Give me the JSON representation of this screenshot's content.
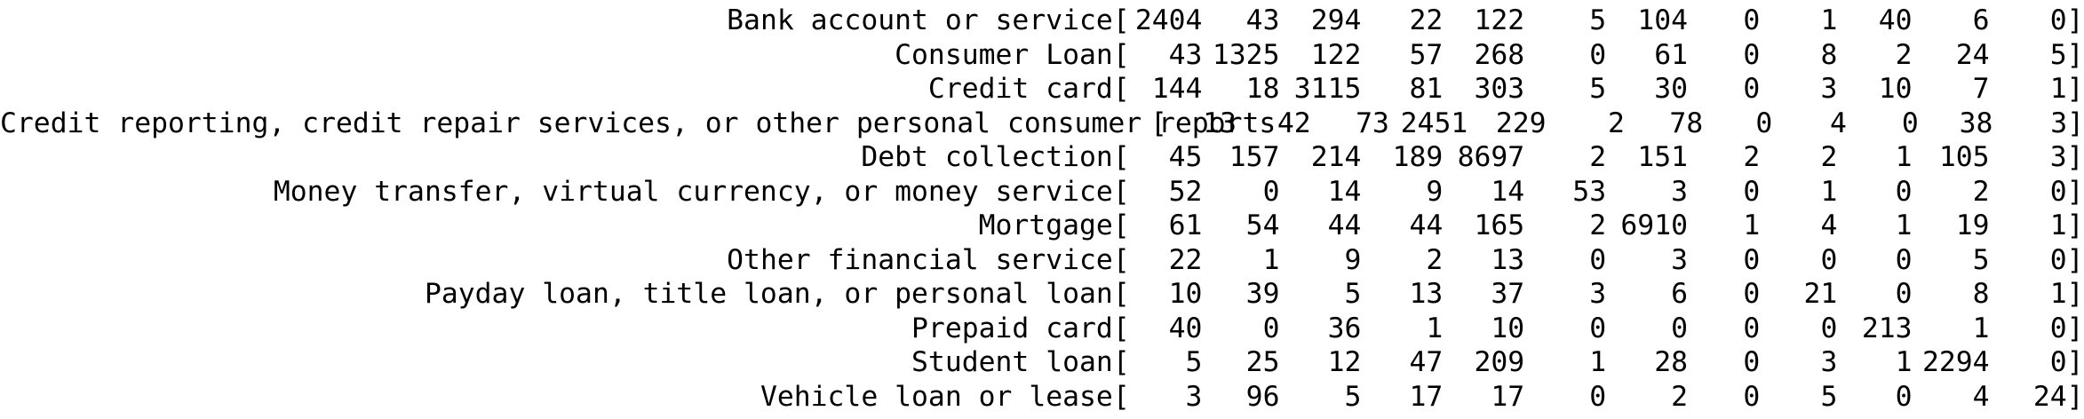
{
  "matrix": {
    "rows": [
      {
        "label": "Bank account or service",
        "values": [
          "2404",
          "43",
          "294",
          "22",
          "122",
          "5",
          "104",
          "0",
          "1",
          "40",
          "6",
          "0"
        ]
      },
      {
        "label": "Consumer Loan",
        "values": [
          "43",
          "1325",
          "122",
          "57",
          "268",
          "0",
          "61",
          "0",
          "8",
          "2",
          "24",
          "5"
        ]
      },
      {
        "label": "Credit card",
        "values": [
          "144",
          "18",
          "3115",
          "81",
          "303",
          "5",
          "30",
          "0",
          "3",
          "10",
          "7",
          "1"
        ]
      },
      {
        "label": "Credit reporting, credit repair services, or other personal consumer reports",
        "values": [
          "13",
          "42",
          "73",
          "2451",
          "229",
          "2",
          "78",
          "0",
          "4",
          "0",
          "38",
          "3"
        ]
      },
      {
        "label": "Debt collection",
        "values": [
          "45",
          "157",
          "214",
          "189",
          "8697",
          "2",
          "151",
          "2",
          "2",
          "1",
          "105",
          "3"
        ]
      },
      {
        "label": "Money transfer, virtual currency, or money service",
        "values": [
          "52",
          "0",
          "14",
          "9",
          "14",
          "53",
          "3",
          "0",
          "1",
          "0",
          "2",
          "0"
        ]
      },
      {
        "label": "Mortgage",
        "values": [
          "61",
          "54",
          "44",
          "44",
          "165",
          "2",
          "6910",
          "1",
          "4",
          "1",
          "19",
          "1"
        ]
      },
      {
        "label": "Other financial service",
        "values": [
          "22",
          "1",
          "9",
          "2",
          "13",
          "0",
          "3",
          "0",
          "0",
          "0",
          "5",
          "0"
        ]
      },
      {
        "label": "Payday loan, title loan, or personal loan",
        "values": [
          "10",
          "39",
          "5",
          "13",
          "37",
          "3",
          "6",
          "0",
          "21",
          "0",
          "8",
          "1"
        ]
      },
      {
        "label": "Prepaid card",
        "values": [
          "40",
          "0",
          "36",
          "1",
          "10",
          "0",
          "0",
          "0",
          "0",
          "213",
          "1",
          "0"
        ]
      },
      {
        "label": "Student loan",
        "values": [
          "5",
          "25",
          "12",
          "47",
          "209",
          "1",
          "28",
          "0",
          "3",
          "1",
          "2294",
          "0"
        ]
      },
      {
        "label": "Vehicle loan or lease",
        "values": [
          "3",
          "96",
          "5",
          "17",
          "17",
          "0",
          "2",
          "0",
          "5",
          "0",
          "4",
          "24"
        ]
      }
    ],
    "open_bracket": "[",
    "close_bracket": "]"
  }
}
